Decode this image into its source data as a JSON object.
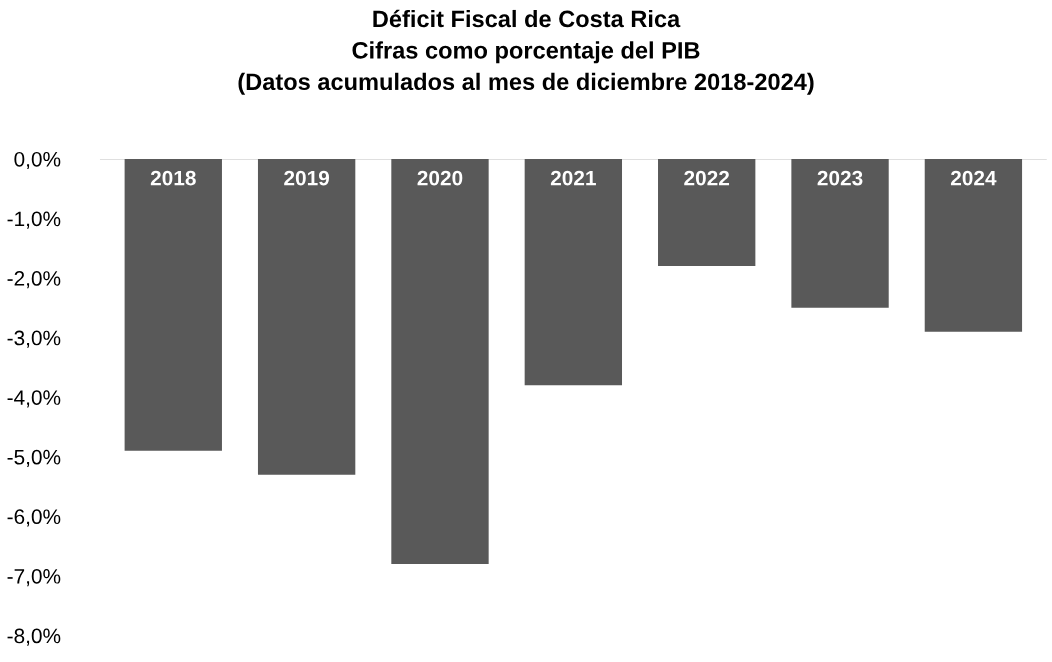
{
  "chart_data": {
    "type": "bar",
    "title": "Déficit Fiscal de Costa Rica\nCifras como porcentaje del PIB\n(Datos acumulados al mes de diciembre 2018-2024)",
    "categories": [
      "2018",
      "2019",
      "2020",
      "2021",
      "2022",
      "2023",
      "2024"
    ],
    "values": [
      -4.9,
      -5.3,
      -6.8,
      -3.8,
      -1.8,
      -2.5,
      -2.9
    ],
    "color": "#595959",
    "ylim": [
      -8,
      0
    ],
    "yticks": [
      {
        "value": 0,
        "label": "0,0%"
      },
      {
        "value": -1,
        "label": "-1,0%"
      },
      {
        "value": -2,
        "label": "-2,0%"
      },
      {
        "value": -3,
        "label": "-3,0%"
      },
      {
        "value": -4,
        "label": "-4,0%"
      },
      {
        "value": -5,
        "label": "-5,0%"
      },
      {
        "value": -6,
        "label": "-6,0%"
      },
      {
        "value": -7,
        "label": "-7,0%"
      },
      {
        "value": -8,
        "label": "-8,0%"
      }
    ],
    "grid": false
  }
}
